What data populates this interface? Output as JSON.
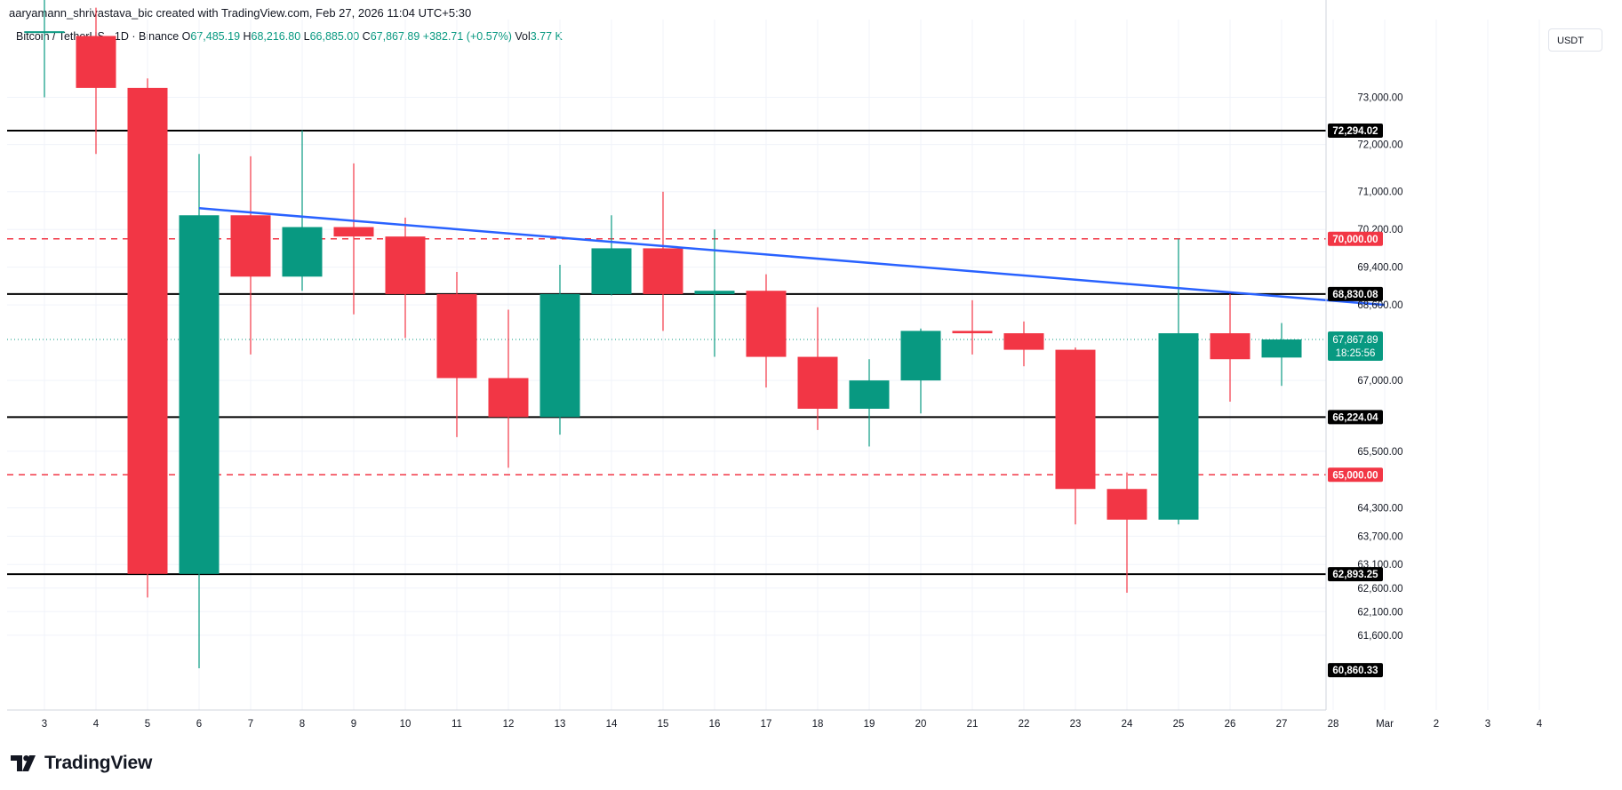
{
  "header": {
    "caption": "aaryamann_shrivastava_bic created with TradingView.com, Feb 27, 2026 11:04 UTC+5:30",
    "symbol": "Bitcoin / TetherUS · 1D · Binance",
    "o_label": "O",
    "o_value": "67,485.19",
    "h_label": "H",
    "h_value": "68,216.80",
    "l_label": "L",
    "l_value": "66,885.00",
    "c_label": "C",
    "c_value": "67,867.89",
    "change": "+382.71 (+0.57%)",
    "vol_label": "Vol",
    "vol_value": "3.77 K",
    "currency": "USDT"
  },
  "brand": {
    "name": "TradingView",
    "icon": "tradingview-logo-icon"
  },
  "colors": {
    "up": "#089981",
    "down": "#f23645",
    "trendline": "#2962ff",
    "level_line": "#000000",
    "dashed_level": "#f23645",
    "grid": "#f0f3fa",
    "text": "#131722"
  },
  "chart_data": {
    "type": "candlestick",
    "x_ticks": [
      "3",
      "4",
      "5",
      "6",
      "7",
      "8",
      "9",
      "10",
      "11",
      "12",
      "13",
      "14",
      "15",
      "16",
      "17",
      "18",
      "19",
      "20",
      "21",
      "22",
      "23",
      "24",
      "25",
      "26",
      "27",
      "28",
      "Mar",
      "2",
      "3",
      "4"
    ],
    "y_ticks": [
      "73,000.00",
      "72,000.00",
      "71,000.00",
      "70,200.00",
      "69,400.00",
      "68,600.00",
      "67,000.00",
      "65,500.00",
      "64,300.00",
      "63,700.00",
      "63,100.00",
      "62,600.00",
      "62,100.00",
      "61,600.00"
    ],
    "ylim": [
      60860.33,
      74000
    ],
    "candles": [
      {
        "date": "3",
        "open": 74400,
        "high": 75500,
        "low": 73000,
        "close": 74400
      },
      {
        "date": "4",
        "open": 74300,
        "high": 74900,
        "low": 71800,
        "close": 73200
      },
      {
        "date": "5",
        "open": 73200,
        "high": 73400,
        "low": 62400,
        "close": 62900
      },
      {
        "date": "6",
        "open": 62900,
        "high": 71800,
        "low": 60900,
        "close": 70500
      },
      {
        "date": "7",
        "open": 70500,
        "high": 71750,
        "low": 67550,
        "close": 69200
      },
      {
        "date": "8",
        "open": 69200,
        "high": 72300,
        "low": 68900,
        "close": 70250
      },
      {
        "date": "9",
        "open": 70250,
        "high": 71600,
        "low": 68400,
        "close": 70050
      },
      {
        "date": "10",
        "open": 70050,
        "high": 70450,
        "low": 67900,
        "close": 68830
      },
      {
        "date": "11",
        "open": 68830,
        "high": 69300,
        "low": 65800,
        "close": 67050
      },
      {
        "date": "12",
        "open": 67050,
        "high": 68500,
        "low": 65150,
        "close": 66224
      },
      {
        "date": "13",
        "open": 66224,
        "high": 69450,
        "low": 65850,
        "close": 68830
      },
      {
        "date": "14",
        "open": 68830,
        "high": 70500,
        "low": 68800,
        "close": 69800
      },
      {
        "date": "15",
        "open": 69800,
        "high": 71000,
        "low": 68050,
        "close": 68830
      },
      {
        "date": "16",
        "open": 68830,
        "high": 70200,
        "low": 67500,
        "close": 68900
      },
      {
        "date": "17",
        "open": 68900,
        "high": 69250,
        "low": 66850,
        "close": 67500
      },
      {
        "date": "18",
        "open": 67500,
        "high": 68550,
        "low": 65950,
        "close": 66400
      },
      {
        "date": "19",
        "open": 66400,
        "high": 67450,
        "low": 65600,
        "close": 67000
      },
      {
        "date": "20",
        "open": 67000,
        "high": 68100,
        "low": 66300,
        "close": 68050
      },
      {
        "date": "21",
        "open": 68050,
        "high": 68700,
        "low": 67550,
        "close": 68000
      },
      {
        "date": "22",
        "open": 68000,
        "high": 68250,
        "low": 67300,
        "close": 67650
      },
      {
        "date": "23",
        "open": 67650,
        "high": 67700,
        "low": 63950,
        "close": 64700
      },
      {
        "date": "24",
        "open": 64700,
        "high": 65050,
        "low": 62500,
        "close": 64050
      },
      {
        "date": "25",
        "open": 64050,
        "high": 70000,
        "low": 63950,
        "close": 68000
      },
      {
        "date": "26",
        "open": 68000,
        "high": 68830,
        "low": 66550,
        "close": 67450
      },
      {
        "date": "27",
        "open": 67485.19,
        "high": 68216.8,
        "low": 66885.0,
        "close": 67867.89
      }
    ],
    "horizontal_levels": [
      {
        "value": 72294.02,
        "label": "72,294.02",
        "style": "solid"
      },
      {
        "value": 70000.0,
        "label": "70,000.00",
        "style": "dashed"
      },
      {
        "value": 68830.08,
        "label": "68,830.08",
        "style": "solid"
      },
      {
        "value": 66224.04,
        "label": "66,224.04",
        "style": "solid"
      },
      {
        "value": 65000.0,
        "label": "65,000.00",
        "style": "dashed"
      },
      {
        "value": 62893.25,
        "label": "62,893.25",
        "style": "solid"
      },
      {
        "value": 60860.33,
        "label": "60,860.33",
        "style": "solid"
      }
    ],
    "trendline": {
      "start": {
        "date": "6",
        "value": 70650
      },
      "end": {
        "date": "Mar",
        "value": 68600
      }
    },
    "last_price": {
      "value": 67867.89,
      "label": "67,867.89",
      "countdown": "18:25:56"
    }
  }
}
